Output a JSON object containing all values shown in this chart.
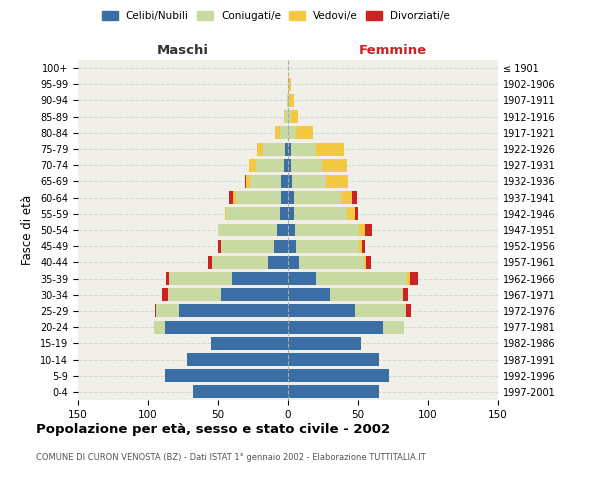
{
  "age_groups": [
    "0-4",
    "5-9",
    "10-14",
    "15-19",
    "20-24",
    "25-29",
    "30-34",
    "35-39",
    "40-44",
    "45-49",
    "50-54",
    "55-59",
    "60-64",
    "65-69",
    "70-74",
    "75-79",
    "80-84",
    "85-89",
    "90-94",
    "95-99",
    "100+"
  ],
  "birth_years": [
    "1997-2001",
    "1992-1996",
    "1987-1991",
    "1982-1986",
    "1977-1981",
    "1972-1976",
    "1967-1971",
    "1962-1966",
    "1957-1961",
    "1952-1956",
    "1947-1951",
    "1942-1946",
    "1937-1941",
    "1932-1936",
    "1927-1931",
    "1922-1926",
    "1917-1921",
    "1912-1916",
    "1907-1911",
    "1902-1906",
    "≤ 1901"
  ],
  "males": {
    "celibi": [
      68,
      88,
      72,
      55,
      88,
      78,
      48,
      40,
      14,
      10,
      8,
      6,
      5,
      5,
      3,
      2,
      0,
      0,
      0,
      0,
      0
    ],
    "coniugati": [
      0,
      0,
      0,
      0,
      8,
      16,
      38,
      45,
      40,
      38,
      42,
      38,
      32,
      22,
      20,
      16,
      6,
      2,
      1,
      0,
      0
    ],
    "vedovi": [
      0,
      0,
      0,
      0,
      0,
      0,
      0,
      0,
      0,
      0,
      0,
      1,
      2,
      3,
      5,
      4,
      3,
      1,
      0,
      0,
      0
    ],
    "divorziati": [
      0,
      0,
      0,
      0,
      0,
      1,
      4,
      2,
      3,
      2,
      0,
      0,
      3,
      1,
      0,
      0,
      0,
      0,
      0,
      0,
      0
    ]
  },
  "females": {
    "nubili": [
      65,
      72,
      65,
      52,
      68,
      48,
      30,
      20,
      8,
      6,
      5,
      4,
      4,
      3,
      2,
      2,
      0,
      0,
      0,
      0,
      0
    ],
    "coniugate": [
      0,
      0,
      0,
      0,
      15,
      36,
      52,
      65,
      46,
      45,
      46,
      38,
      34,
      24,
      22,
      18,
      6,
      2,
      1,
      1,
      0
    ],
    "vedove": [
      0,
      0,
      0,
      0,
      0,
      0,
      0,
      2,
      2,
      2,
      4,
      6,
      8,
      16,
      18,
      20,
      12,
      5,
      3,
      1,
      0
    ],
    "divorziate": [
      0,
      0,
      0,
      0,
      0,
      4,
      4,
      6,
      3,
      2,
      5,
      2,
      3,
      0,
      0,
      0,
      0,
      0,
      0,
      0,
      0
    ]
  },
  "colors": {
    "celibi": "#3B6EA5",
    "coniugati": "#c8d9a2",
    "vedovi": "#f5c842",
    "divorziati": "#cc2222"
  },
  "xlim": 150,
  "title": "Popolazione per età, sesso e stato civile - 2002",
  "subtitle": "COMUNE DI CURON VENOSTA (BZ) - Dati ISTAT 1° gennaio 2002 - Elaborazione TUTTITALIA.IT",
  "ylabel_left": "Fasce di età",
  "legend_labels": [
    "Celibi/Nubili",
    "Coniugati/e",
    "Vedovi/e",
    "Divorziati/e"
  ],
  "maschi_label": "Maschi",
  "femmine_label": "Femmine",
  "maschi_color": "#333333",
  "femmine_color": "#cc2222",
  "bg_color": "#f0f0e8"
}
